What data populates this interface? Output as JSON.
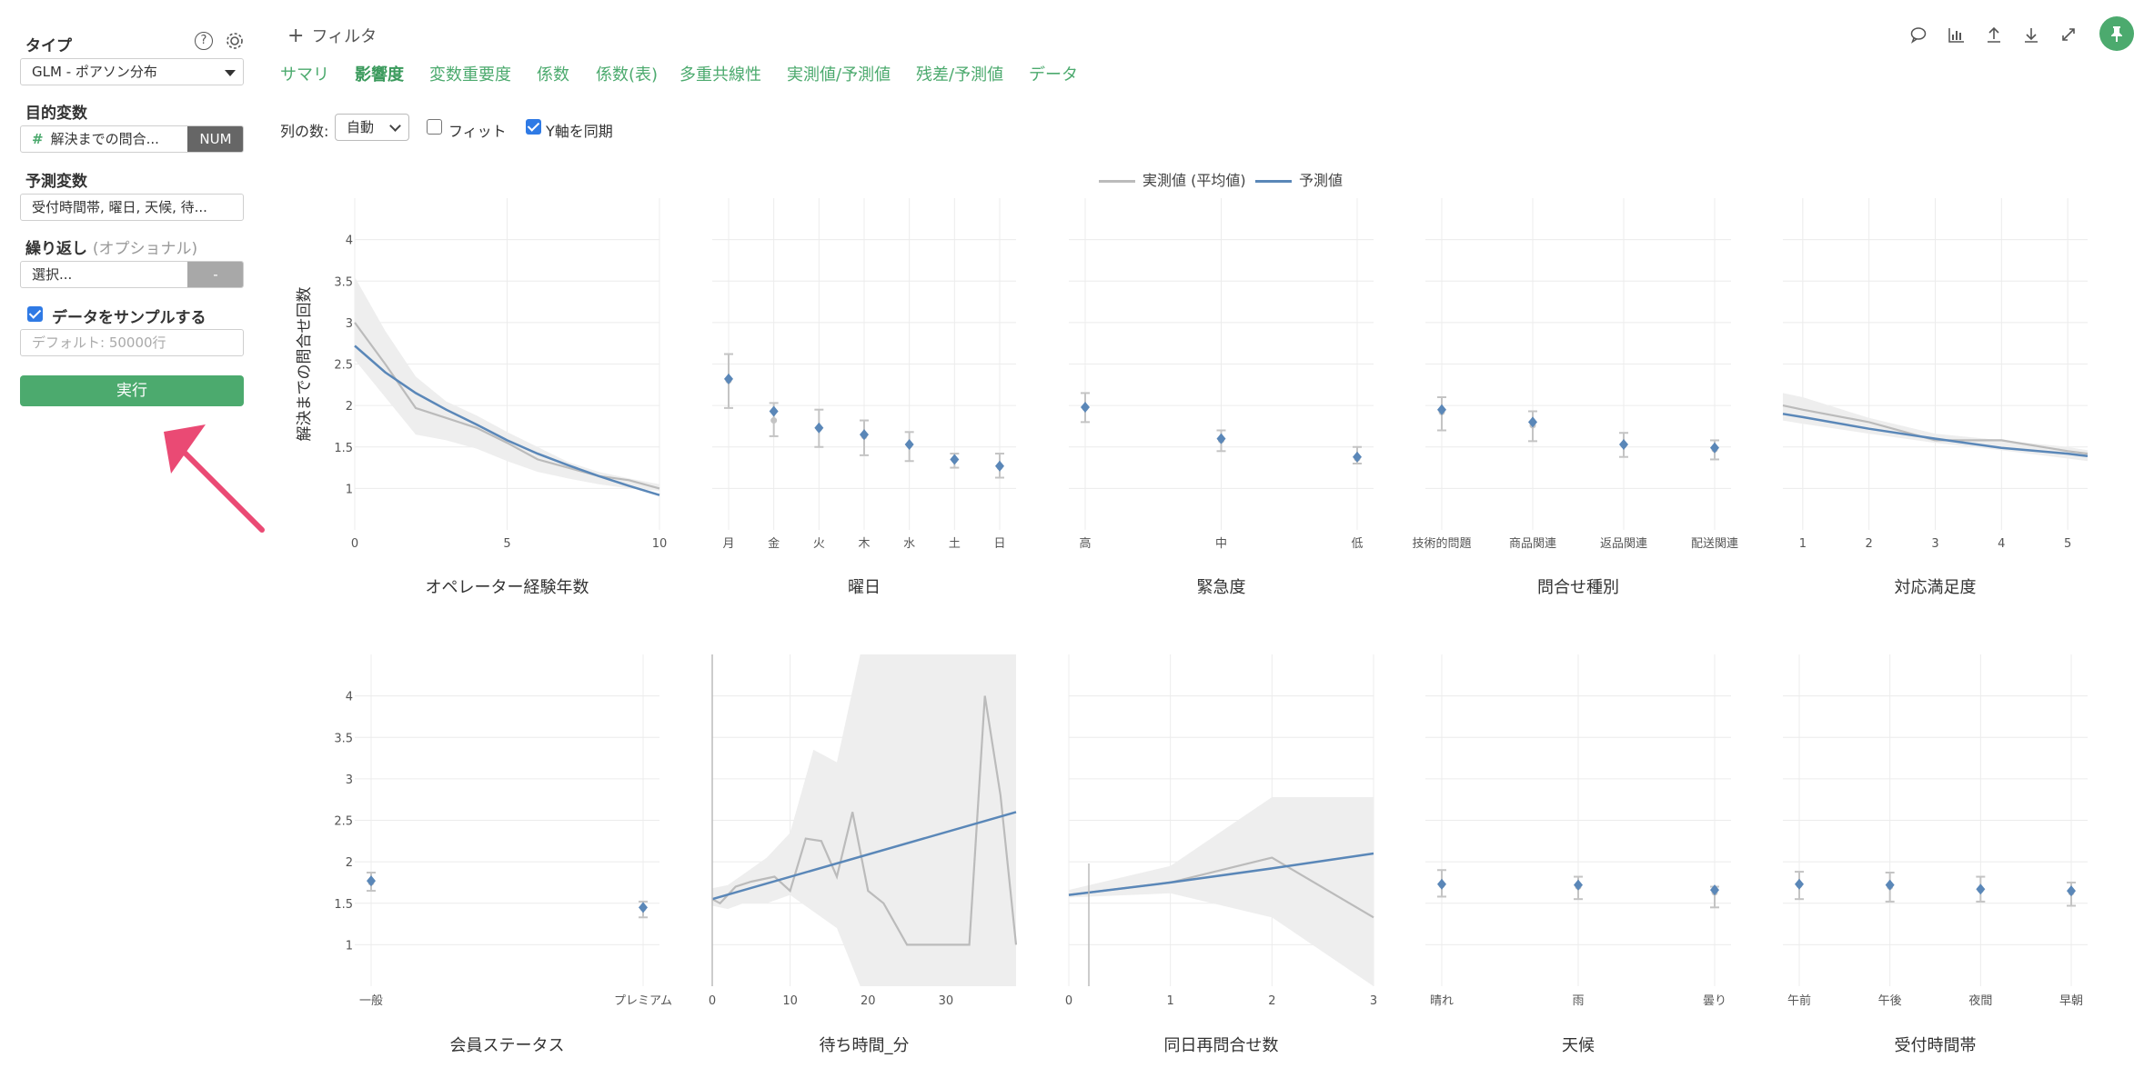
{
  "sidebar": {
    "type_label": "タイプ",
    "type_value": "GLM - ポアソン分布",
    "target_label": "目的変数",
    "target_value": "解決までの問合...",
    "target_type": "NUM",
    "predictor_label": "予測変数",
    "predictor_value": "受付時間帯, 曜日, 天候, 待...",
    "repeat_label": "繰り返し",
    "repeat_optional": "(オプショナル)",
    "repeat_placeholder": "選択...",
    "repeat_button": "-",
    "sample_label": "データをサンプルする",
    "sample_checked": true,
    "sample_placeholder": "デフォルト: 50000行",
    "run_label": "実行",
    "help_icon": "?",
    "settings_icon": "gear-icon"
  },
  "header": {
    "filter_label": "フィルタ",
    "tabs": [
      "サマリ",
      "影響度",
      "変数重要度",
      "係数",
      "係数(表)",
      "多重共線性",
      "実測値/予測値",
      "残差/予測値",
      "データ"
    ],
    "active_tab": "影響度",
    "columns_label": "列の数:",
    "columns_value": "自動",
    "fit_label": "フィット",
    "fit_checked": false,
    "sync_y_label": "Y軸を同期",
    "sync_y_checked": true,
    "tool_icons": [
      "comment-icon",
      "chart-icon",
      "upload-icon",
      "download-icon",
      "expand-icon",
      "pin-icon"
    ]
  },
  "legend": {
    "actual_label": "実測値 (平均値)",
    "pred_label": "予測値",
    "actual_color": "#bbbbbb",
    "pred_color": "#5a87b8"
  },
  "colors": {
    "accent": "#4caa6e",
    "band": "#eeeeee",
    "pred": "#5a87b8",
    "actual": "#bbbbbb",
    "arrow": "#ea4a74"
  },
  "chart_data": [
    {
      "type": "line",
      "title": "オペレーター経験年数",
      "ylabel": "解決までの問合せ回数",
      "xlim": [
        0,
        10
      ],
      "ylim": [
        0.5,
        4.5
      ],
      "xticks": [
        0,
        5,
        10
      ],
      "series": [
        {
          "name": "実測値 (平均値)",
          "x": [
            0,
            1,
            2,
            3,
            4,
            5,
            6,
            7,
            8,
            9,
            10
          ],
          "values": [
            3.0,
            2.5,
            1.97,
            1.85,
            1.73,
            1.55,
            1.35,
            1.25,
            1.15,
            1.1,
            1.0
          ]
        },
        {
          "name": "予測値",
          "x": [
            0,
            1,
            2,
            3,
            4,
            5,
            6,
            7,
            8,
            9,
            10
          ],
          "values": [
            2.72,
            2.4,
            2.15,
            1.95,
            1.77,
            1.58,
            1.42,
            1.28,
            1.15,
            1.03,
            0.92
          ]
        }
      ],
      "band": {
        "x": [
          0,
          1,
          2,
          3,
          4,
          5,
          6,
          7,
          8,
          9,
          10
        ],
        "lower": [
          2.55,
          2.1,
          1.65,
          1.58,
          1.48,
          1.33,
          1.2,
          1.12,
          1.05,
          1.0,
          0.97
        ],
        "upper": [
          3.55,
          2.9,
          2.35,
          2.05,
          1.88,
          1.68,
          1.5,
          1.32,
          1.2,
          1.12,
          1.05
        ]
      }
    },
    {
      "type": "scatter",
      "title": "曜日",
      "ylim": [
        0.5,
        4.5
      ],
      "categories": [
        "月",
        "金",
        "火",
        "木",
        "水",
        "土",
        "日"
      ],
      "pred": [
        2.32,
        1.93,
        1.73,
        1.65,
        1.53,
        1.35,
        1.27
      ],
      "actual": [
        2.3,
        1.82,
        1.72,
        1.63,
        1.52,
        1.34,
        1.26
      ],
      "lower": [
        1.97,
        1.63,
        1.5,
        1.4,
        1.33,
        1.25,
        1.13
      ],
      "upper": [
        2.62,
        2.03,
        1.95,
        1.82,
        1.68,
        1.42,
        1.42
      ]
    },
    {
      "type": "scatter",
      "title": "緊急度",
      "ylim": [
        0.5,
        4.5
      ],
      "categories": [
        "高",
        "中",
        "低"
      ],
      "pred": [
        1.98,
        1.6,
        1.38
      ],
      "actual": [
        1.97,
        1.58,
        1.36
      ],
      "lower": [
        1.8,
        1.45,
        1.3
      ],
      "upper": [
        2.15,
        1.7,
        1.5
      ]
    },
    {
      "type": "scatter",
      "title": "問合せ種別",
      "ylim": [
        0.5,
        4.5
      ],
      "categories": [
        "技術的問題",
        "商品関連",
        "返品関連",
        "配送関連"
      ],
      "pred": [
        1.95,
        1.8,
        1.53,
        1.49
      ],
      "actual": [
        1.92,
        1.76,
        1.52,
        1.47
      ],
      "lower": [
        1.7,
        1.57,
        1.38,
        1.35
      ],
      "upper": [
        2.1,
        1.93,
        1.67,
        1.58
      ]
    },
    {
      "type": "line",
      "title": "対応満足度",
      "ylim": [
        0.5,
        4.5
      ],
      "xlim": [
        0.7,
        5.3
      ],
      "xticks": [
        1,
        2,
        3,
        4,
        5
      ],
      "series": [
        {
          "name": "実測値 (平均値)",
          "x": [
            0.7,
            1,
            2,
            3,
            4,
            5,
            5.3
          ],
          "values": [
            2.0,
            1.95,
            1.8,
            1.58,
            1.58,
            1.45,
            1.42
          ]
        },
        {
          "name": "予測値",
          "x": [
            0.7,
            1,
            2,
            3,
            4,
            5,
            5.3
          ],
          "values": [
            1.9,
            1.86,
            1.72,
            1.6,
            1.49,
            1.42,
            1.39
          ]
        }
      ],
      "band": {
        "x": [
          0.7,
          1,
          2,
          3,
          4,
          5,
          5.3
        ],
        "lower": [
          1.82,
          1.78,
          1.66,
          1.55,
          1.46,
          1.36,
          1.33
        ],
        "upper": [
          2.15,
          2.1,
          1.85,
          1.66,
          1.58,
          1.5,
          1.46
        ]
      }
    },
    {
      "type": "scatter",
      "title": "会員ステータス",
      "ylim": [
        0.5,
        4.5
      ],
      "categories": [
        "一般",
        "プレミアム"
      ],
      "pred": [
        1.77,
        1.45
      ],
      "actual": [
        1.75,
        1.44
      ],
      "lower": [
        1.65,
        1.33
      ],
      "upper": [
        1.87,
        1.52
      ]
    },
    {
      "type": "line",
      "title": "待ち時間_分",
      "ylim": [
        0.5,
        4.5
      ],
      "xlim": [
        0,
        39
      ],
      "xticks": [
        0,
        10,
        20,
        30
      ],
      "series": [
        {
          "name": "実測値 (平均値)",
          "x": [
            0,
            1,
            3,
            5,
            8,
            10,
            12,
            14,
            16,
            18,
            20,
            22,
            25,
            28,
            33,
            35,
            37,
            39
          ],
          "values": [
            1.55,
            1.5,
            1.7,
            1.76,
            1.82,
            1.65,
            2.28,
            2.25,
            1.82,
            2.6,
            1.65,
            1.5,
            1.0,
            1.0,
            1.0,
            4.0,
            2.8,
            1.0
          ]
        },
        {
          "name": "予測値",
          "x": [
            0,
            39
          ],
          "values": [
            1.55,
            2.6
          ]
        }
      ],
      "band": {
        "x": [
          0,
          2,
          4,
          7,
          10,
          13,
          16,
          19,
          21,
          23,
          25,
          28,
          32,
          35,
          37,
          39
        ],
        "lower": [
          1.47,
          1.43,
          1.5,
          1.5,
          1.6,
          1.4,
          1.2,
          0.5,
          0.5,
          0.5,
          0.5,
          0.5,
          0.5,
          0.5,
          0.5,
          0.5
        ],
        "upper": [
          1.68,
          1.72,
          1.85,
          2.05,
          2.35,
          3.35,
          3.2,
          4.5,
          4.5,
          4.5,
          4.5,
          4.5,
          4.5,
          4.5,
          4.5,
          4.5
        ]
      }
    },
    {
      "type": "line",
      "title": "同日再問合せ数",
      "ylim": [
        0.5,
        4.5
      ],
      "xlim": [
        0,
        3
      ],
      "xticks": [
        0,
        1,
        2,
        3
      ],
      "series": [
        {
          "name": "実測値 (平均値)",
          "x": [
            0,
            1,
            2,
            3
          ],
          "values": [
            1.6,
            1.75,
            2.05,
            1.33
          ]
        },
        {
          "name": "予測値",
          "x": [
            0,
            1,
            2,
            3
          ],
          "values": [
            1.6,
            1.75,
            1.92,
            2.1
          ]
        }
      ],
      "band": {
        "x": [
          0,
          1,
          2,
          3
        ],
        "lower": [
          1.57,
          1.62,
          1.33,
          0.5
        ],
        "upper": [
          1.66,
          1.95,
          2.78,
          2.78
        ]
      }
    },
    {
      "type": "scatter",
      "title": "天候",
      "ylim": [
        0.5,
        4.5
      ],
      "categories": [
        "晴れ",
        "雨",
        "曇り"
      ],
      "pred": [
        1.73,
        1.72,
        1.66
      ],
      "actual": [
        1.72,
        1.7,
        1.63
      ],
      "lower": [
        1.58,
        1.55,
        1.45
      ],
      "upper": [
        1.9,
        1.82,
        1.7
      ]
    },
    {
      "type": "scatter",
      "title": "受付時間帯",
      "ylim": [
        0.5,
        4.5
      ],
      "categories": [
        "午前",
        "午後",
        "夜間",
        "早朝"
      ],
      "pred": [
        1.73,
        1.72,
        1.67,
        1.65
      ],
      "actual": [
        1.72,
        1.7,
        1.66,
        1.63
      ],
      "lower": [
        1.55,
        1.52,
        1.52,
        1.47
      ],
      "upper": [
        1.88,
        1.87,
        1.82,
        1.75
      ]
    }
  ]
}
